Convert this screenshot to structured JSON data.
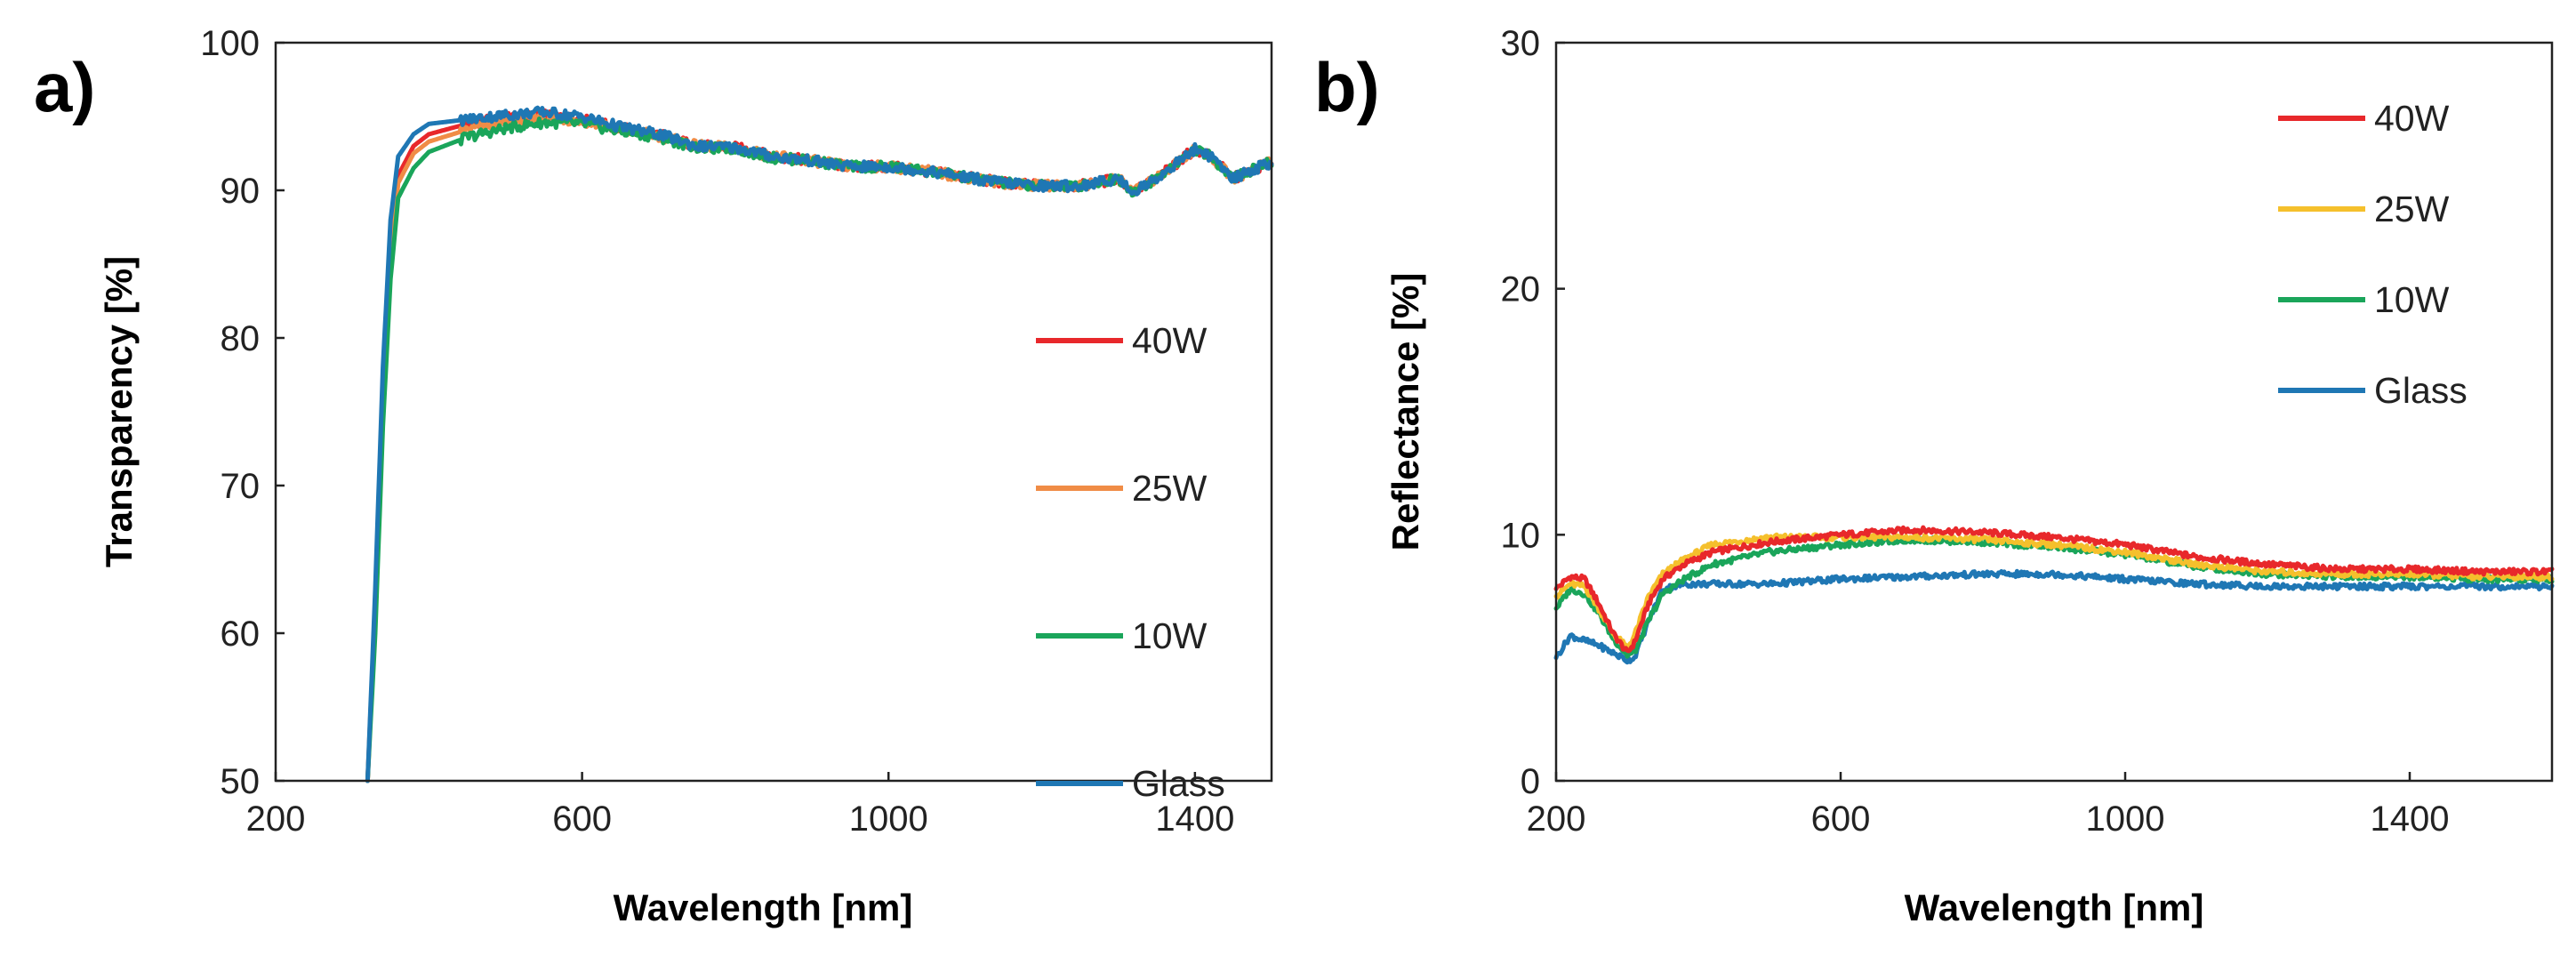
{
  "chart_data": [
    {
      "type": "line",
      "panel": "a)",
      "xlabel": "Wavelength [nm]",
      "ylabel": "Transparency [%]",
      "xlim": [
        200,
        1500
      ],
      "ylim": [
        50,
        100
      ],
      "xticks": [
        200,
        600,
        1000,
        1400
      ],
      "yticks": [
        50,
        60,
        70,
        80,
        90,
        100
      ],
      "legend_position": "center-right",
      "series": [
        {
          "name": "40W",
          "color": "#e8282b",
          "x": [
            320,
            330,
            340,
            350,
            360,
            380,
            400,
            450,
            500,
            550,
            600,
            650,
            700,
            750,
            800,
            850,
            900,
            950,
            1000,
            1050,
            1100,
            1150,
            1200,
            1250,
            1300,
            1320,
            1350,
            1400,
            1420,
            1450,
            1480,
            1500
          ],
          "y": [
            50,
            62,
            76,
            86,
            91,
            93,
            93.8,
            94.5,
            94.9,
            95.1,
            94.8,
            94.2,
            93.8,
            93.0,
            92.9,
            92.3,
            92.0,
            91.6,
            91.6,
            91.3,
            90.9,
            90.5,
            90.3,
            90.3,
            90.8,
            89.9,
            90.8,
            92.8,
            92.3,
            90.8,
            91.5,
            91.9
          ]
        },
        {
          "name": "25W",
          "color": "#f08c46",
          "x": [
            320,
            330,
            340,
            350,
            360,
            380,
            400,
            450,
            500,
            550,
            600,
            650,
            700,
            750,
            800,
            850,
            900,
            950,
            1000,
            1050,
            1100,
            1150,
            1200,
            1250,
            1300,
            1320,
            1350,
            1400,
            1420,
            1450,
            1480,
            1500
          ],
          "y": [
            50,
            61,
            75,
            85,
            90.5,
            92.5,
            93.3,
            94.1,
            94.6,
            94.9,
            94.7,
            94.1,
            93.7,
            93.0,
            92.9,
            92.3,
            92.0,
            91.6,
            91.6,
            91.3,
            90.9,
            90.5,
            90.3,
            90.3,
            90.8,
            89.9,
            90.8,
            92.8,
            92.3,
            90.8,
            91.5,
            91.9
          ]
        },
        {
          "name": "10W",
          "color": "#1aa55a",
          "x": [
            320,
            330,
            340,
            350,
            360,
            380,
            400,
            450,
            500,
            550,
            600,
            650,
            700,
            750,
            800,
            850,
            900,
            950,
            1000,
            1050,
            1100,
            1150,
            1200,
            1250,
            1300,
            1320,
            1350,
            1400,
            1420,
            1450,
            1480,
            1500
          ],
          "y": [
            50,
            60,
            74,
            84,
            89.5,
            91.5,
            92.6,
            93.6,
            94.2,
            94.6,
            94.5,
            94.0,
            93.6,
            92.9,
            92.8,
            92.2,
            92.0,
            91.6,
            91.6,
            91.3,
            90.9,
            90.5,
            90.3,
            90.3,
            90.8,
            89.9,
            90.8,
            92.8,
            92.3,
            90.8,
            91.5,
            91.9
          ]
        },
        {
          "name": "Glass",
          "color": "#1f77b4",
          "x": [
            320,
            330,
            340,
            350,
            360,
            380,
            400,
            450,
            500,
            550,
            600,
            650,
            700,
            750,
            800,
            850,
            900,
            950,
            1000,
            1050,
            1100,
            1150,
            1200,
            1250,
            1300,
            1320,
            1350,
            1400,
            1420,
            1450,
            1480,
            1500
          ],
          "y": [
            50,
            63,
            78,
            88,
            92.3,
            93.8,
            94.5,
            94.8,
            95.1,
            95.3,
            95.0,
            94.3,
            93.8,
            93.0,
            92.9,
            92.3,
            92.0,
            91.6,
            91.6,
            91.3,
            90.9,
            90.5,
            90.3,
            90.3,
            90.8,
            89.9,
            90.8,
            92.8,
            92.3,
            90.8,
            91.5,
            91.9
          ]
        }
      ]
    },
    {
      "type": "line",
      "panel": "b)",
      "xlabel": "Wavelength [nm]",
      "ylabel": "Reflectance  [%]",
      "xlim": [
        200,
        1600
      ],
      "ylim": [
        0,
        30
      ],
      "xticks": [
        200,
        600,
        1000,
        1400
      ],
      "yticks": [
        0,
        10,
        20,
        30
      ],
      "legend_position": "top-right",
      "series": [
        {
          "name": "40W",
          "color": "#e8282b",
          "x": [
            200,
            220,
            240,
            260,
            280,
            300,
            310,
            330,
            350,
            380,
            420,
            500,
            600,
            700,
            800,
            900,
            1000,
            1100,
            1200,
            1300,
            1400,
            1500,
            1600
          ],
          "y": [
            7.8,
            8.3,
            8.2,
            7.2,
            6.0,
            5.2,
            5.6,
            7.2,
            8.2,
            8.8,
            9.3,
            9.7,
            10.0,
            10.2,
            10.1,
            9.9,
            9.6,
            9.1,
            8.8,
            8.6,
            8.6,
            8.5,
            8.5
          ]
        },
        {
          "name": "25W",
          "color": "#f5c02c",
          "x": [
            200,
            220,
            240,
            260,
            280,
            300,
            310,
            330,
            350,
            380,
            420,
            500,
            600,
            700,
            800,
            900,
            1000,
            1100,
            1200,
            1300,
            1400,
            1500,
            1600
          ],
          "y": [
            7.5,
            8.0,
            7.9,
            7.0,
            6.0,
            5.4,
            5.9,
            7.5,
            8.4,
            9.0,
            9.6,
            9.9,
            9.9,
            9.9,
            9.8,
            9.6,
            9.3,
            8.8,
            8.5,
            8.4,
            8.4,
            8.3,
            8.3
          ]
        },
        {
          "name": "10W",
          "color": "#1aa55a",
          "x": [
            200,
            220,
            240,
            260,
            280,
            300,
            310,
            330,
            350,
            380,
            420,
            500,
            600,
            700,
            800,
            900,
            1000,
            1100,
            1200,
            1300,
            1400,
            1500,
            1600
          ],
          "y": [
            7.0,
            7.8,
            7.6,
            6.8,
            5.8,
            5.1,
            5.2,
            6.5,
            7.6,
            8.2,
            8.8,
            9.3,
            9.6,
            9.8,
            9.7,
            9.5,
            9.2,
            8.7,
            8.4,
            8.3,
            8.3,
            8.2,
            8.2
          ]
        },
        {
          "name": "Glass",
          "color": "#1f77b4",
          "x": [
            200,
            220,
            240,
            260,
            280,
            300,
            310,
            330,
            350,
            380,
            420,
            500,
            600,
            700,
            800,
            900,
            1000,
            1100,
            1200,
            1300,
            1400,
            1500,
            1600
          ],
          "y": [
            5.0,
            5.9,
            5.7,
            5.5,
            5.2,
            4.9,
            5.0,
            6.5,
            7.8,
            8.0,
            8.0,
            8.0,
            8.2,
            8.3,
            8.4,
            8.4,
            8.2,
            8.0,
            7.9,
            7.9,
            7.9,
            7.9,
            7.9
          ]
        }
      ]
    }
  ]
}
